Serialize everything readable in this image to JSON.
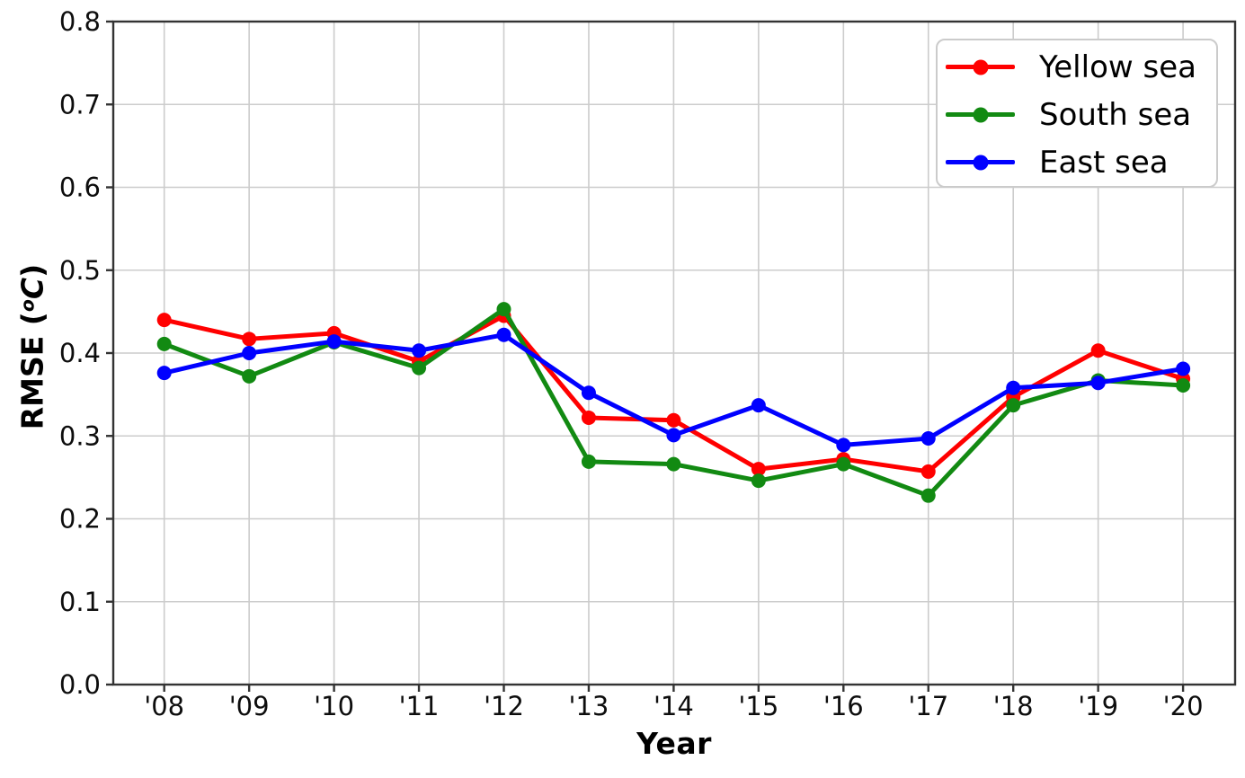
{
  "chart_data": {
    "type": "line",
    "title": "",
    "xlabel": "Year",
    "ylabel": "RMSE (°C)",
    "ylabel_parts": {
      "prefix": "RMSE (",
      "superscript": "o",
      "unit": "C",
      "suffix": ")"
    },
    "categories": [
      "'08",
      "'09",
      "'10",
      "'11",
      "'12",
      "'13",
      "'14",
      "'15",
      "'16",
      "'17",
      "'18",
      "'19",
      "'20"
    ],
    "ylim": [
      0.0,
      0.8
    ],
    "ytick_labels": [
      "0.0",
      "0.1",
      "0.2",
      "0.3",
      "0.4",
      "0.5",
      "0.6",
      "0.7",
      "0.8"
    ],
    "grid": true,
    "legend_position": "upper right",
    "series": [
      {
        "name": "Yellow sea",
        "color": "#ff0000",
        "values": [
          0.44,
          0.417,
          0.424,
          0.39,
          0.445,
          0.322,
          0.319,
          0.26,
          0.272,
          0.257,
          0.347,
          0.403,
          0.369
        ]
      },
      {
        "name": "South sea",
        "color": "#128a12",
        "values": [
          0.411,
          0.372,
          0.413,
          0.382,
          0.453,
          0.269,
          0.266,
          0.246,
          0.266,
          0.228,
          0.337,
          0.367,
          0.361
        ]
      },
      {
        "name": "East sea",
        "color": "#0000ff",
        "values": [
          0.376,
          0.4,
          0.414,
          0.403,
          0.422,
          0.352,
          0.301,
          0.337,
          0.289,
          0.297,
          0.358,
          0.364,
          0.381
        ]
      }
    ],
    "colors": {
      "grid": "#cccccc",
      "spine": "#333333",
      "tick": "#333333",
      "text": "#0d0d0d"
    }
  }
}
